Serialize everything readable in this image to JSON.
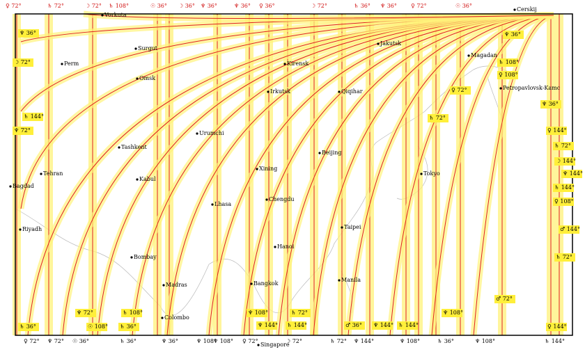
{
  "map": {
    "cities": [
      "Vorkuta",
      "Cerskij",
      "Surgut",
      "Perm",
      "Omsk",
      "Kirensk",
      "Jakutsk",
      "Magadan",
      "Irkutsk",
      "Qiqihar",
      "Petropavlovsk-Kamc",
      "Tashkent",
      "Urumchi",
      "Beijing",
      "Xining",
      "Tehran",
      "Kabul",
      "Tokyo",
      "Bagdad",
      "Chengdu",
      "Lhasa",
      "Riyadh",
      "Taipei",
      "Hanoi",
      "Bombay",
      "Madras",
      "Bangkok",
      "Manila",
      "Colombo",
      "Singapore"
    ],
    "top_labels": [
      "♀ 72°",
      "♄ 72°",
      "☽ 72°",
      "♄ 108°",
      "☉ 36°",
      "☽ 36°",
      "♆ 36°",
      "♆ 36°",
      "♀ 36°",
      "☽ 72°",
      "♄ 36°",
      "♆ 36°",
      "♀ 72°",
      "☉ 36°"
    ],
    "bottom_labels": [
      "♀ 72°",
      "♆ 72°",
      "☉ 36°",
      "♄ 36°",
      "♆ 36°",
      "♆ 108°",
      "♆ 108°",
      "♀ 72°",
      "☽ 72°",
      "♄ 72°",
      "♆ 144°",
      "♆ 108°",
      "♄ 36°",
      "♆ 108°",
      "♄ 144°"
    ],
    "map_labels": [
      "♆ 36°",
      "☽ 72°",
      "♄ 144°",
      "♆ 72°",
      "♆ 36°",
      "♄ 108°",
      "♀ 108°",
      "♀ 72°",
      "♄ 72°",
      "♆ 36°",
      "♀ 144°",
      "♄ 72°",
      "☽ 144°",
      "♆ 144°",
      "♄ 144°",
      "♀ 108°",
      "♂ 144°",
      "♄ 72°",
      "♂ 72°",
      "♆ 72°",
      "♄ 108°",
      "♆ 108°",
      "♄ 72°",
      "♆ 108°",
      "♄ 36°",
      "☉ 108°",
      "♄ 36°",
      "♆ 144°",
      "♄ 144°",
      "♂ 36°",
      "♆ 144°",
      "♄ 144°",
      "♀ 144°"
    ]
  }
}
